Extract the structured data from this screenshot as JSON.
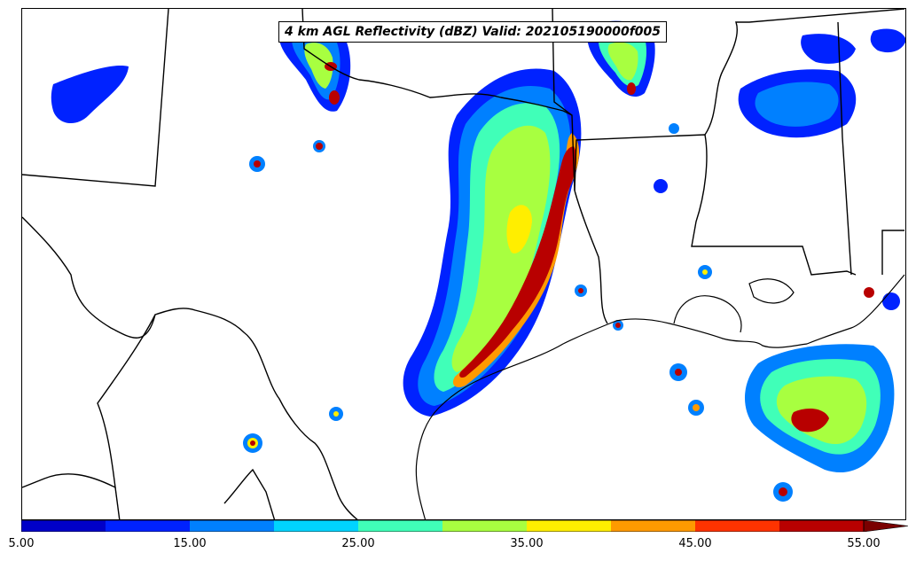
{
  "map": {
    "title": "4 km AGL Reflectivity (dBZ) Valid: 202105190000f005"
  },
  "colorbar": {
    "tick_labels": [
      "5.00",
      "15.00",
      "25.00",
      "35.00",
      "45.00",
      "55.00"
    ],
    "colors": [
      "#0000c8",
      "#0022ff",
      "#0080ff",
      "#00d4ff",
      "#40ffb8",
      "#a8ff40",
      "#ffee00",
      "#ff9a00",
      "#ff3300",
      "#b80000"
    ],
    "extend_color": "#7a0000"
  }
}
